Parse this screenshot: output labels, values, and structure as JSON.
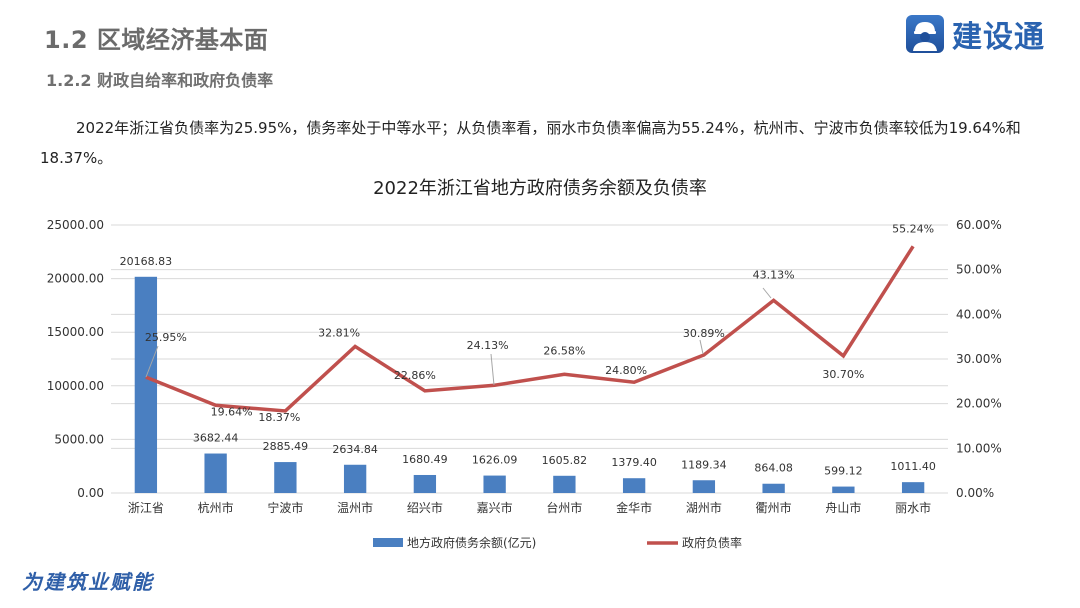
{
  "header": {
    "section_title": "1.2 区域经济基本面",
    "subsection_title": "1.2.2 财政自给率和政府负债率",
    "logo_text": "建设通",
    "logo_icon": "worker-helmet-icon"
  },
  "paragraph": "2022年浙江省负债率为25.95%，债务率处于中等水平；从负债率看，丽水市负债率偏高为55.24%，杭州市、宁波市负债率较低为19.64%和18.37%。",
  "footer": {
    "slogan": "为建筑业赋能"
  },
  "colors": {
    "bar": "#4a7fc1",
    "line": "#c0504d",
    "grid": "#d9d9d9",
    "text": "#333333"
  },
  "chart_data": {
    "type": "bar+line",
    "title": "2022年浙江省地方政府债务余额及负债率",
    "categories": [
      "浙江省",
      "杭州市",
      "宁波市",
      "温州市",
      "绍兴市",
      "嘉兴市",
      "台州市",
      "金华市",
      "湖州市",
      "衢州市",
      "舟山市",
      "丽水市"
    ],
    "series": [
      {
        "name": "地方政府债务余额(亿元)",
        "type": "bar",
        "axis": "left",
        "values": [
          20168.83,
          3682.44,
          2885.49,
          2634.84,
          1680.49,
          1626.09,
          1605.82,
          1379.4,
          1189.34,
          864.08,
          599.12,
          1011.4
        ],
        "labels": [
          "20168.83",
          "3682.44",
          "2885.49",
          "2634.84",
          "1680.49",
          "1626.09",
          "1605.82",
          "1379.40",
          "1189.34",
          "864.08",
          "599.12",
          "1011.40"
        ]
      },
      {
        "name": "政府负债率",
        "type": "line",
        "axis": "right",
        "values": [
          25.95,
          19.64,
          18.37,
          32.81,
          22.86,
          24.13,
          26.58,
          24.8,
          30.89,
          43.13,
          30.7,
          55.24
        ],
        "labels": [
          "25.95%",
          "19.64%",
          "18.37%",
          "32.81%",
          "22.86%",
          "24.13%",
          "26.58%",
          "24.80%",
          "30.89%",
          "43.13%",
          "30.70%",
          "55.24%"
        ]
      }
    ],
    "y_left": {
      "range": [
        0,
        25000
      ],
      "ticks": [
        "0.00",
        "5000.00",
        "10000.00",
        "15000.00",
        "20000.00",
        "25000.00"
      ]
    },
    "y_right": {
      "range": [
        0,
        60
      ],
      "ticks": [
        "0.00%",
        "10.00%",
        "20.00%",
        "30.00%",
        "40.00%",
        "50.00%",
        "60.00%"
      ]
    },
    "grid": true,
    "legend_position": "bottom",
    "legend": [
      "地方政府债务余额(亿元)",
      "政府负债率"
    ]
  }
}
